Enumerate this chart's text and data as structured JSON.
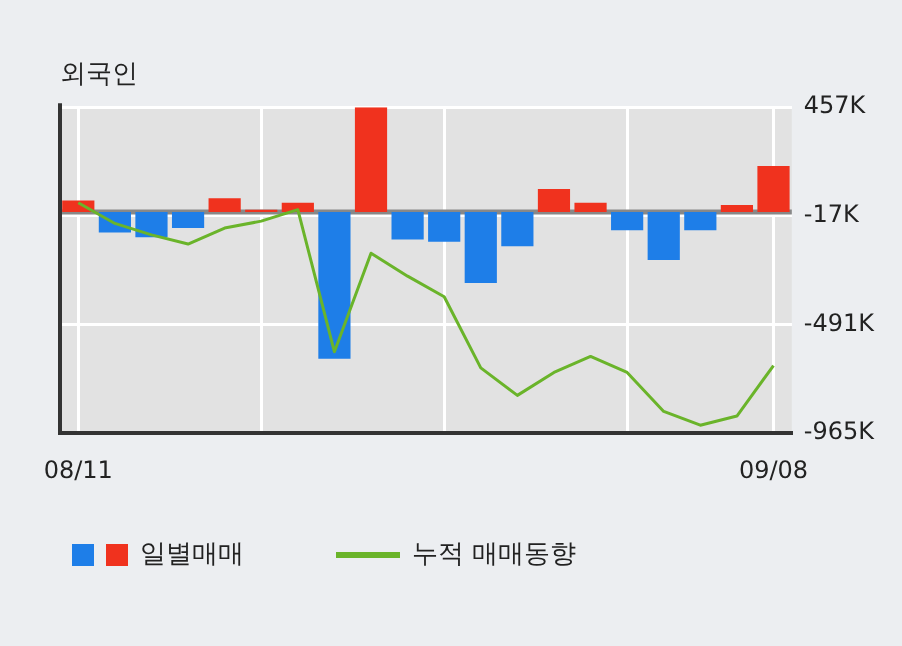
{
  "chart_data": {
    "type": "bar",
    "title": "외국인",
    "categories": [
      "08/11",
      null,
      null,
      null,
      null,
      null,
      null,
      null,
      null,
      null,
      null,
      null,
      null,
      null,
      null,
      null,
      null,
      null,
      null,
      "09/08"
    ],
    "series": [
      {
        "name": "일별매매",
        "colors": [
          "#f0321e",
          "#1e7ee8",
          "#1e7ee8",
          "#1e7ee8",
          "#f0321e",
          "#f0321e",
          "#f0321e",
          "#1e7ee8",
          "#f0321e",
          "#1e7ee8",
          "#1e7ee8",
          "#1e7ee8",
          "#1e7ee8",
          "#f0321e",
          "#f0321e",
          "#1e7ee8",
          "#1e7ee8",
          "#1e7ee8",
          "#f0321e",
          "#f0321e"
        ],
        "values": [
          50,
          -90,
          -110,
          -70,
          60,
          10,
          40,
          -640,
          457,
          -120,
          -130,
          -310,
          -150,
          100,
          40,
          -80,
          -210,
          -80,
          30,
          200
        ]
      },
      {
        "name": "누적 매매동향",
        "type": "line",
        "color": "#6ab42a",
        "values": [
          40,
          -50,
          -100,
          -140,
          -70,
          -40,
          10,
          -610,
          -180,
          -280,
          -370,
          -680,
          -800,
          -700,
          -630,
          -700,
          -870,
          -930,
          -890,
          -670
        ]
      }
    ],
    "ylim": [
      -965,
      457
    ],
    "yticks": [
      {
        "value": 457,
        "label": "457K"
      },
      {
        "value": -17,
        "label": "-17K"
      },
      {
        "value": -491,
        "label": "-491K"
      },
      {
        "value": -965,
        "label": "-965K"
      }
    ],
    "ref_lines": [
      {
        "axis": "y",
        "value": 0,
        "color": "#888888"
      }
    ],
    "grid": true,
    "legend": "bottom",
    "marker": "none",
    "line_style": "solid"
  }
}
